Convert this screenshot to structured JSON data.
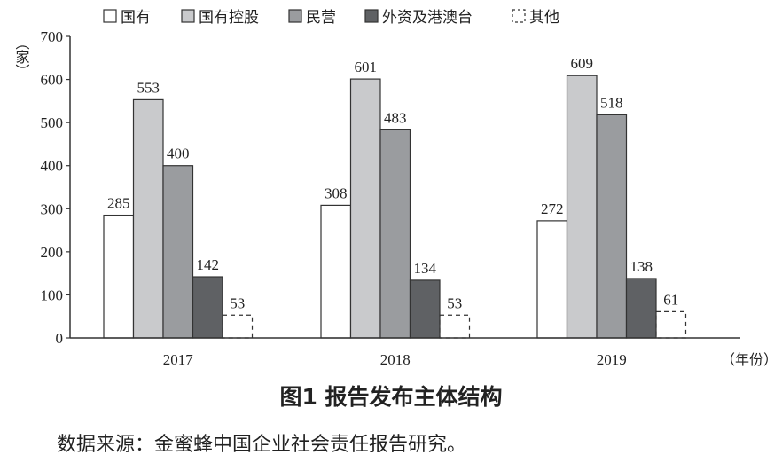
{
  "caption": "图1  报告发布主体结构",
  "source": "数据来源：金蜜蜂中国企业社会责任报告研究。",
  "chart_data": {
    "type": "bar",
    "ylabel": "（家）",
    "xlabel": "（年份）",
    "ylim": [
      0,
      700
    ],
    "yticks": [
      0,
      100,
      200,
      300,
      400,
      500,
      600,
      700
    ],
    "categories": [
      "2017",
      "2018",
      "2019"
    ],
    "legend_position": "top",
    "series": [
      {
        "name": "国有",
        "values": [
          285,
          308,
          272
        ],
        "color": "#ffffff",
        "dashed": false
      },
      {
        "name": "国有控股",
        "values": [
          553,
          601,
          609
        ],
        "color": "#c9cacc",
        "dashed": false
      },
      {
        "name": "民营",
        "values": [
          400,
          483,
          518
        ],
        "color": "#9a9c9f",
        "dashed": false
      },
      {
        "name": "外资及港澳台",
        "values": [
          142,
          134,
          138
        ],
        "color": "#5f6164",
        "dashed": false
      },
      {
        "name": "其他",
        "values": [
          53,
          53,
          61
        ],
        "color": "#ffffff",
        "dashed": true
      }
    ]
  }
}
